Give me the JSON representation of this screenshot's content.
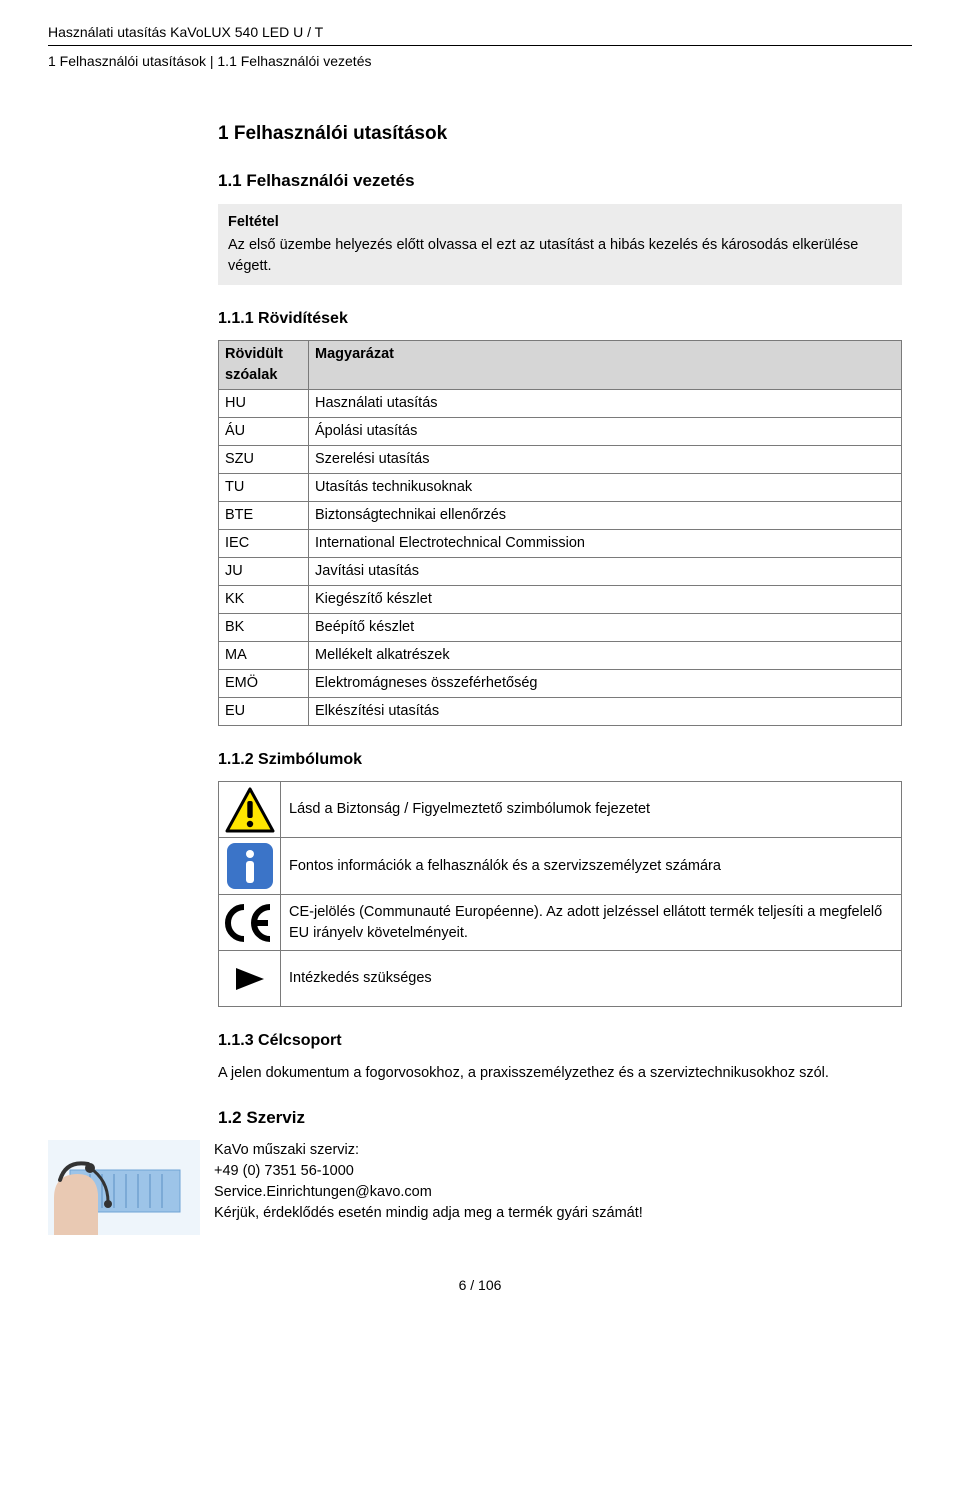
{
  "header": {
    "line1": "Használati utasítás KaVoLUX 540 LED U / T",
    "line2": "1 Felhasználói utasítások | 1.1 Felhasználói vezetés"
  },
  "s1": {
    "title": "1 Felhasználói utasítások",
    "s11": {
      "title": "1.1 Felhasználói vezetés",
      "box_title": "Feltétel",
      "box_body": "Az első üzembe helyezés előtt olvassa el ezt az utasítást a hibás kezelés és károsodás elkerülése végett."
    },
    "s111": {
      "title": "1.1.1 Rövidítések",
      "head_abbr": "Rövidült szóalak",
      "head_def": "Magyarázat",
      "rows": [
        {
          "abbr": "HU",
          "def": "Használati utasítás"
        },
        {
          "abbr": "ÁU",
          "def": "Ápolási utasítás"
        },
        {
          "abbr": "SZU",
          "def": "Szerelési utasítás"
        },
        {
          "abbr": "TU",
          "def": "Utasítás technikusoknak"
        },
        {
          "abbr": "BTE",
          "def": "Biztonságtechnikai ellenőrzés"
        },
        {
          "abbr": "IEC",
          "def": "International Electrotechnical Commission"
        },
        {
          "abbr": "JU",
          "def": "Javítási utasítás"
        },
        {
          "abbr": "KK",
          "def": "Kiegészítő készlet"
        },
        {
          "abbr": "BK",
          "def": "Beépítő készlet"
        },
        {
          "abbr": "MA",
          "def": "Mellékelt alkatrészek"
        },
        {
          "abbr": "EMÖ",
          "def": "Elektromágneses összeférhetőség"
        },
        {
          "abbr": "EU",
          "def": "Elkészítési utasítás"
        }
      ]
    },
    "s112": {
      "title": "1.1.2 Szimbólumok",
      "rows": [
        {
          "icon": "warning",
          "text": "Lásd a Biztonság / Figyelmeztető szimbólumok fejezetet"
        },
        {
          "icon": "info",
          "text": "Fontos információk a felhasználók és a szervizszemélyzet számára"
        },
        {
          "icon": "ce",
          "text": "CE-jelölés (Communauté Européenne). Az adott jelzéssel ellátott termék teljesíti a megfelelő EU irányelv követelményeit."
        },
        {
          "icon": "action",
          "text": "Intézkedés szükséges"
        }
      ],
      "colors": {
        "warning_fill": "#ffe600",
        "warning_stroke": "#000000",
        "info_bg": "#3b74c8",
        "info_fg": "#ffffff",
        "ce_color": "#000000",
        "action_color": "#000000"
      }
    },
    "s113": {
      "title": "1.1.3 Célcsoport",
      "body": "A jelen dokumentum a fogorvosokhoz, a praxisszemélyzethez és a szerviztechnikusokhoz szól."
    },
    "s12": {
      "title": "1.2 Szerviz",
      "line1": "KaVo műszaki szerviz:",
      "line2": "+49 (0) 7351 56-1000",
      "line3": "Service.Einrichtungen@kavo.com",
      "line4": "Kérjük, érdeklődés esetén mindig adja meg a termék gyári számát!"
    }
  },
  "page": "6 / 106"
}
